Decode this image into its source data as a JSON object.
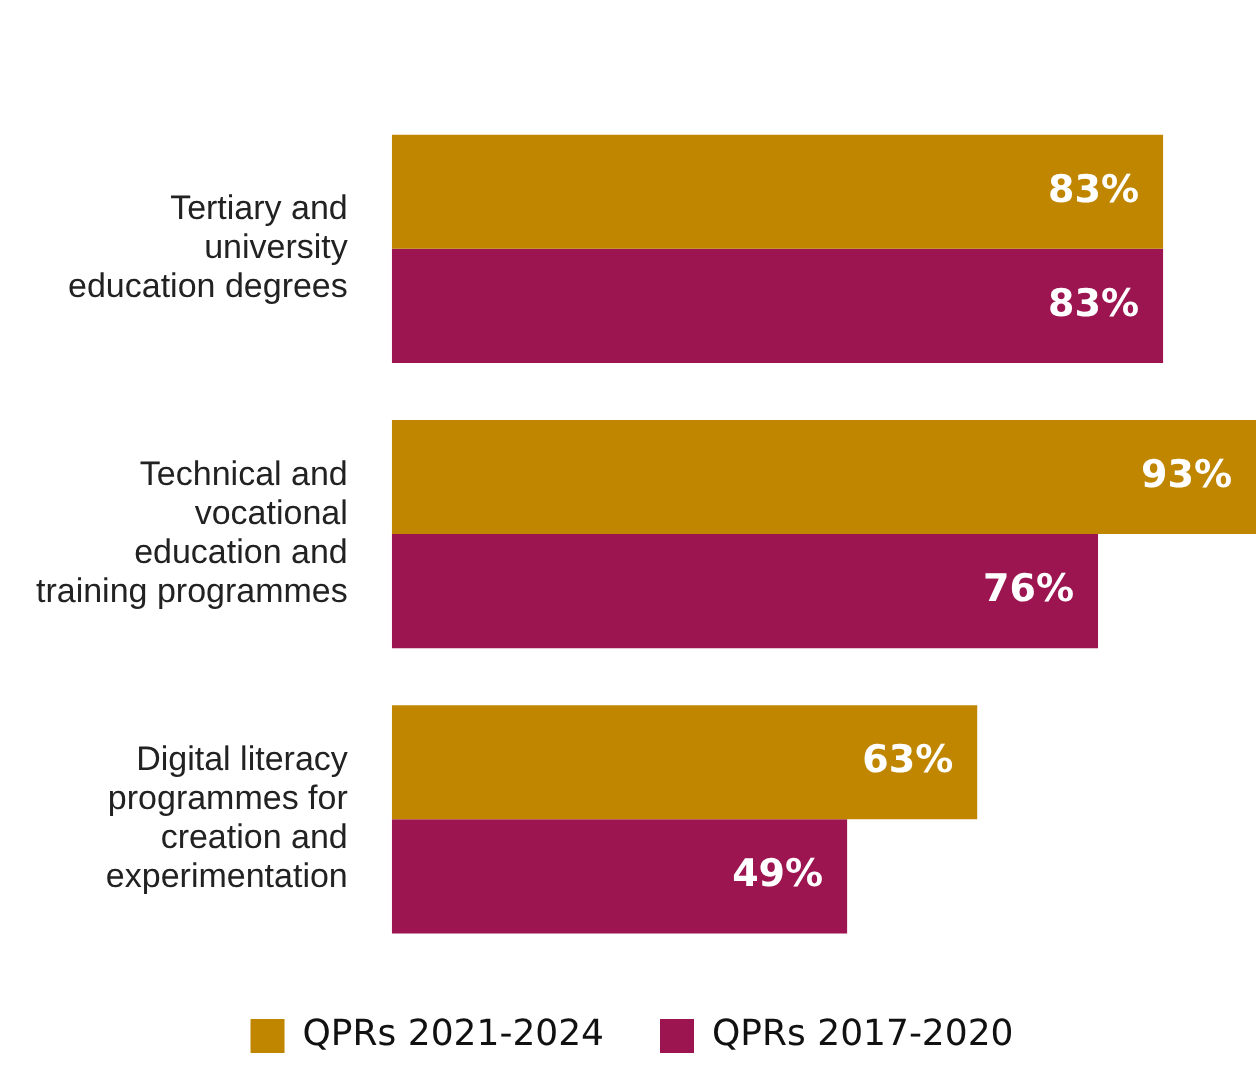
{
  "chart_data": {
    "type": "bar",
    "orientation": "horizontal",
    "categories": [
      "Tertiary and university education degrees",
      "Technical and vocational education and training programmes",
      "Digital literacy programmes for creation and experimentation"
    ],
    "series": [
      {
        "name": "QPRs 2021-2024",
        "color": "#c08600",
        "values": [
          83,
          93,
          63
        ],
        "value_labels": [
          "83%",
          "93%",
          "63%"
        ]
      },
      {
        "name": "QPRs 2017-2020",
        "color": "#9c1450",
        "values": [
          83,
          76,
          49
        ],
        "value_labels": [
          "83%",
          "76%",
          "49%"
        ]
      }
    ],
    "legend": "bottom"
  }
}
